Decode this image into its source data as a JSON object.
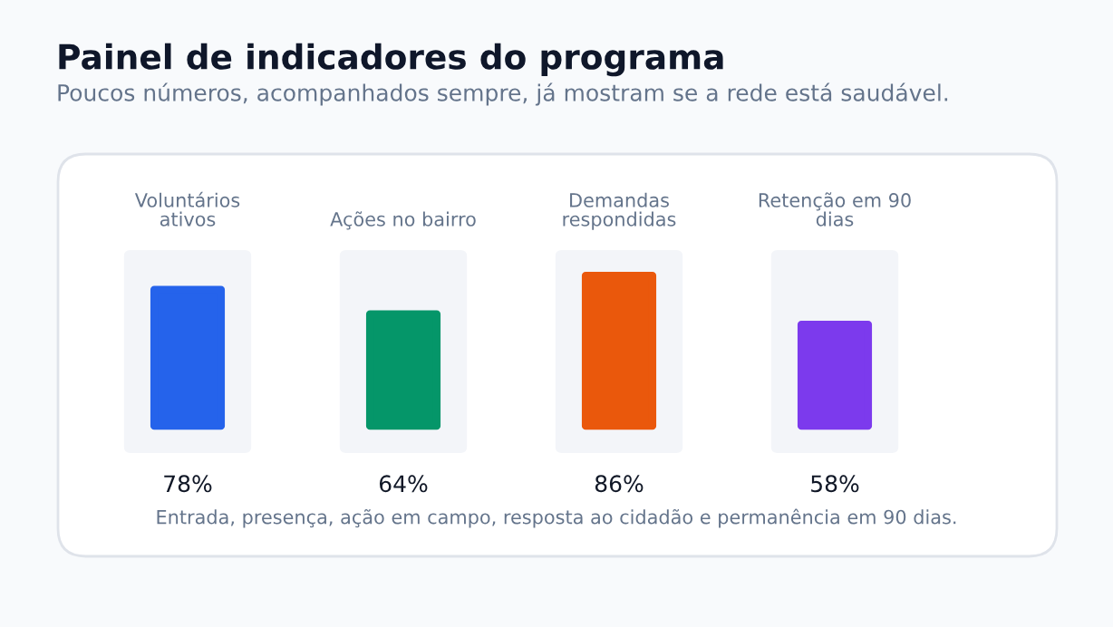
{
  "chart_data": {
    "type": "bar",
    "title": "Painel de indicadores do programa",
    "subtitle": "Poucos números, acompanhados sempre, já mostram se a rede está saudável.",
    "categories": [
      "Voluntários ativos",
      "Ações no bairro",
      "Demandas respondidas",
      "Retenção em 90 dias"
    ],
    "values": [
      78,
      64,
      86,
      58
    ],
    "colors": [
      "#2563eb",
      "#059669",
      "#ea580c",
      "#7c3aed"
    ],
    "value_labels": [
      "78%",
      "64%",
      "86%",
      "58%"
    ],
    "annotations": [
      "Entrada, presença, ação em campo, resposta ao cidadão e permanência em 90 dias."
    ]
  }
}
